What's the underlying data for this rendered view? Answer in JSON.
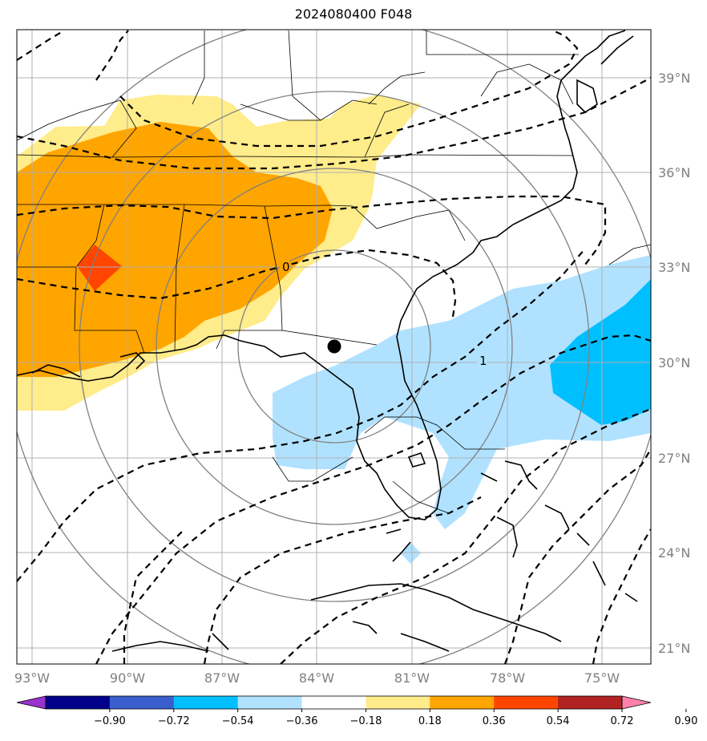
{
  "title": "2024080400 F048",
  "map": {
    "projection": "lat-lon",
    "lon_ticks": [
      "93°W",
      "90°W",
      "87°W",
      "84°W",
      "81°W",
      "78°W",
      "75°W"
    ],
    "lat_ticks": [
      "39°N",
      "36°N",
      "33°N",
      "30°N",
      "27°N",
      "24°N",
      "21°N"
    ],
    "contour_labels": [
      "0",
      "1"
    ],
    "center_marker": "black-dot",
    "colors": {
      "land_outline": "#000000",
      "grid": "#b0b0b0",
      "range_rings": "#808080",
      "contour": "#000000"
    }
  },
  "colorbar": {
    "ticks": [
      "−0.90",
      "−0.72",
      "−0.54",
      "−0.36",
      "−0.18",
      "0.18",
      "0.36",
      "0.54",
      "0.72",
      "0.90"
    ],
    "colors": [
      "#9932cc",
      "#00008b",
      "#3a5fcd",
      "#00bfff",
      "#b0e2ff",
      "#ffffff",
      "#ffec8b",
      "#ffa500",
      "#ff4500",
      "#b22222",
      "#ff82ab"
    ]
  }
}
